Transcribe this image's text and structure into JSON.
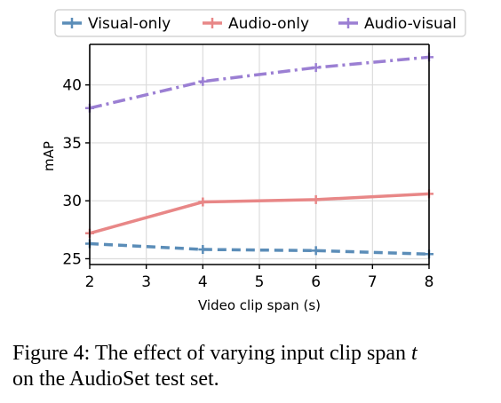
{
  "chart_data": {
    "type": "line",
    "xlabel": "Video clip span (s)",
    "ylabel": "mAP",
    "x": [
      2,
      4,
      6,
      8
    ],
    "xticks": [
      2,
      3,
      4,
      5,
      6,
      7,
      8
    ],
    "yticks": [
      25,
      30,
      35,
      40
    ],
    "xlim": [
      2,
      8
    ],
    "ylim": [
      24.5,
      43.5
    ],
    "grid": true,
    "legend_position": "top",
    "series": [
      {
        "name": "Visual-only",
        "values": [
          26.3,
          25.8,
          25.7,
          25.4
        ],
        "color": "#5b8db8",
        "dash": "dashed"
      },
      {
        "name": "Audio-only",
        "values": [
          27.2,
          29.9,
          30.1,
          30.6
        ],
        "color": "#e88787",
        "dash": "solid"
      },
      {
        "name": "Audio-visual",
        "values": [
          38.0,
          40.3,
          41.5,
          42.4
        ],
        "color": "#9b7fd3",
        "dash": "dashdot"
      }
    ]
  },
  "caption": {
    "prefix": "Figure 4: The effect of varying input clip span ",
    "variable": "t",
    "suffix": "on the AudioSet test set."
  }
}
